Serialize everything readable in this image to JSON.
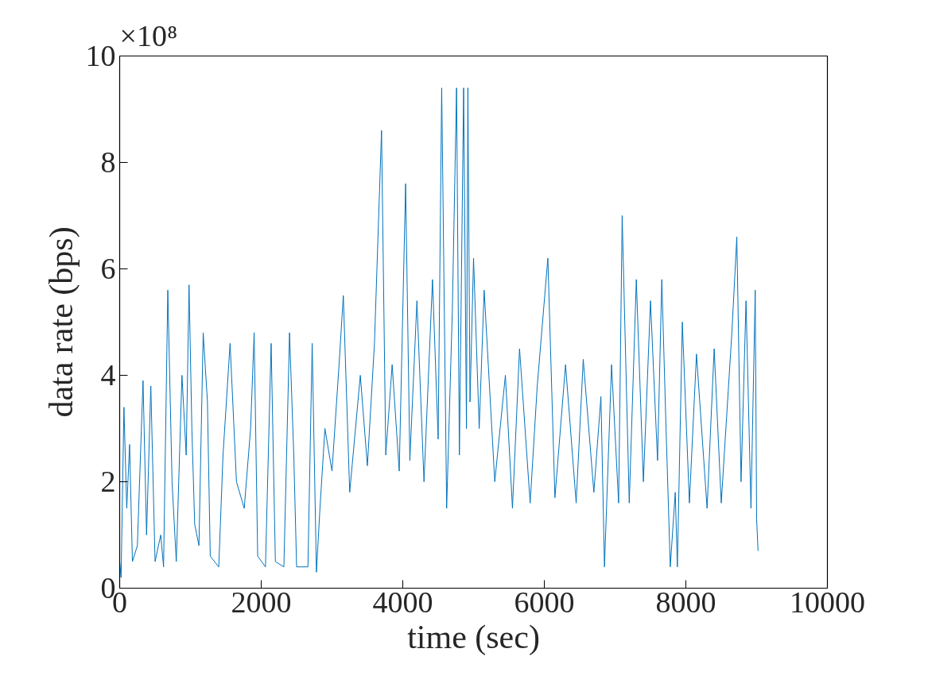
{
  "chart_data": {
    "type": "line",
    "xlabel": "time (sec)",
    "ylabel": "data rate (bps)",
    "annotations": [
      "×10⁸"
    ],
    "xlim": [
      0,
      10000
    ],
    "xticks": [
      0,
      2000,
      4000,
      6000,
      8000,
      10000
    ],
    "ylim": [
      0,
      10
    ],
    "yticks": [
      0,
      2,
      4,
      6,
      8,
      10
    ],
    "grid": false,
    "series": [
      {
        "color": "#0072bd",
        "x": [
          0,
          20,
          60,
          100,
          140,
          180,
          250,
          330,
          380,
          440,
          500,
          580,
          620,
          680,
          740,
          800,
          880,
          940,
          980,
          1020,
          1060,
          1120,
          1180,
          1240,
          1280,
          1400,
          1460,
          1560,
          1650,
          1760,
          1850,
          1900,
          1950,
          2060,
          2140,
          2200,
          2320,
          2400,
          2460,
          2500,
          2660,
          2720,
          2780,
          2830,
          2900,
          3000,
          3100,
          3160,
          3250,
          3400,
          3500,
          3600,
          3700,
          3760,
          3850,
          3950,
          4040,
          4100,
          4200,
          4300,
          4420,
          4500,
          4550,
          4620,
          4700,
          4760,
          4800,
          4860,
          4900,
          4920,
          4950,
          5000,
          5080,
          5150,
          5300,
          5450,
          5550,
          5650,
          5800,
          5900,
          6050,
          6150,
          6300,
          6450,
          6550,
          6700,
          6800,
          6850,
          6950,
          7050,
          7100,
          7200,
          7300,
          7400,
          7500,
          7600,
          7660,
          7720,
          7780,
          7850,
          7880,
          7950,
          8050,
          8150,
          8300,
          8400,
          8500,
          8650,
          8720,
          8780,
          8850,
          8920,
          8980,
          9000,
          9020
        ],
        "values": [
          0.5,
          0.2,
          3.4,
          1.5,
          2.7,
          0.5,
          0.8,
          3.9,
          1.0,
          3.8,
          0.5,
          1.0,
          0.4,
          5.6,
          2.0,
          0.5,
          4.0,
          2.5,
          5.7,
          3.0,
          1.2,
          0.8,
          4.8,
          3.5,
          0.6,
          0.4,
          2.5,
          4.6,
          2.0,
          1.5,
          3.0,
          4.8,
          0.6,
          0.4,
          4.6,
          0.5,
          0.4,
          4.8,
          2.5,
          0.4,
          0.4,
          4.6,
          0.3,
          1.5,
          3.0,
          2.2,
          4.2,
          5.5,
          1.8,
          4.0,
          2.3,
          4.6,
          8.6,
          2.5,
          4.2,
          2.2,
          7.6,
          2.4,
          5.4,
          2.0,
          5.8,
          2.8,
          9.4,
          1.5,
          5.2,
          9.4,
          2.5,
          9.4,
          3.0,
          9.4,
          3.5,
          6.2,
          3.0,
          5.6,
          2.0,
          4.0,
          1.5,
          4.5,
          1.6,
          3.8,
          6.2,
          1.7,
          4.2,
          1.6,
          4.3,
          1.8,
          3.6,
          0.4,
          4.2,
          1.6,
          7.0,
          1.6,
          5.8,
          2.0,
          5.4,
          2.4,
          5.8,
          3.0,
          0.4,
          1.8,
          0.4,
          5.0,
          1.6,
          4.4,
          1.5,
          4.5,
          1.6,
          4.8,
          6.6,
          2.0,
          5.4,
          1.5,
          5.6,
          1.3,
          0.7
        ]
      }
    ]
  }
}
